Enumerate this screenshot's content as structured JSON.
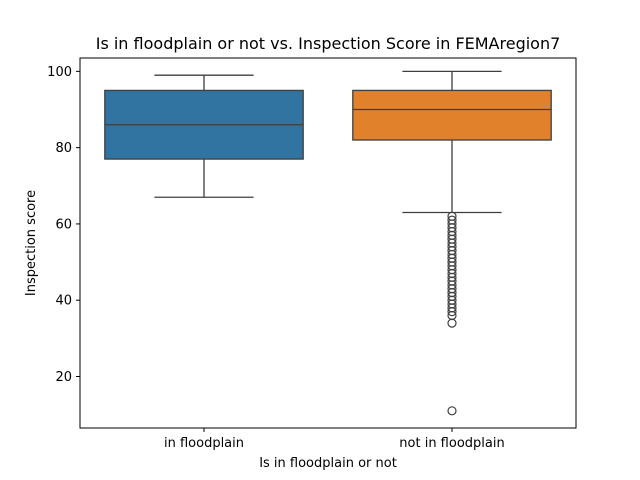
{
  "chart_data": {
    "type": "box",
    "title": "Is in floodplain or not vs. Inspection Score in FEMAregion7",
    "xlabel": "Is in floodplain or not",
    "ylabel": "Inspection score",
    "categories": [
      "in floodplain",
      "not in floodplain"
    ],
    "ylim": [
      6.5,
      103.5
    ],
    "yticks": [
      20,
      40,
      60,
      80,
      100
    ],
    "grid": false,
    "legend": "none",
    "series": [
      {
        "category": "in floodplain",
        "color": "#3274a1",
        "whisker_low": 67,
        "q1": 77,
        "median": 86,
        "q3": 95,
        "whisker_high": 99,
        "outliers": []
      },
      {
        "category": "not in floodplain",
        "color": "#e1812c",
        "whisker_low": 63,
        "q1": 82,
        "median": 90,
        "q3": 95,
        "whisker_high": 100,
        "outliers": [
          62,
          61,
          60,
          59,
          58,
          57,
          56,
          55,
          54,
          53,
          52,
          51,
          50,
          49,
          48,
          47,
          46,
          45,
          44,
          43,
          42,
          41,
          40,
          39,
          38,
          37,
          36,
          34,
          11
        ]
      }
    ]
  }
}
